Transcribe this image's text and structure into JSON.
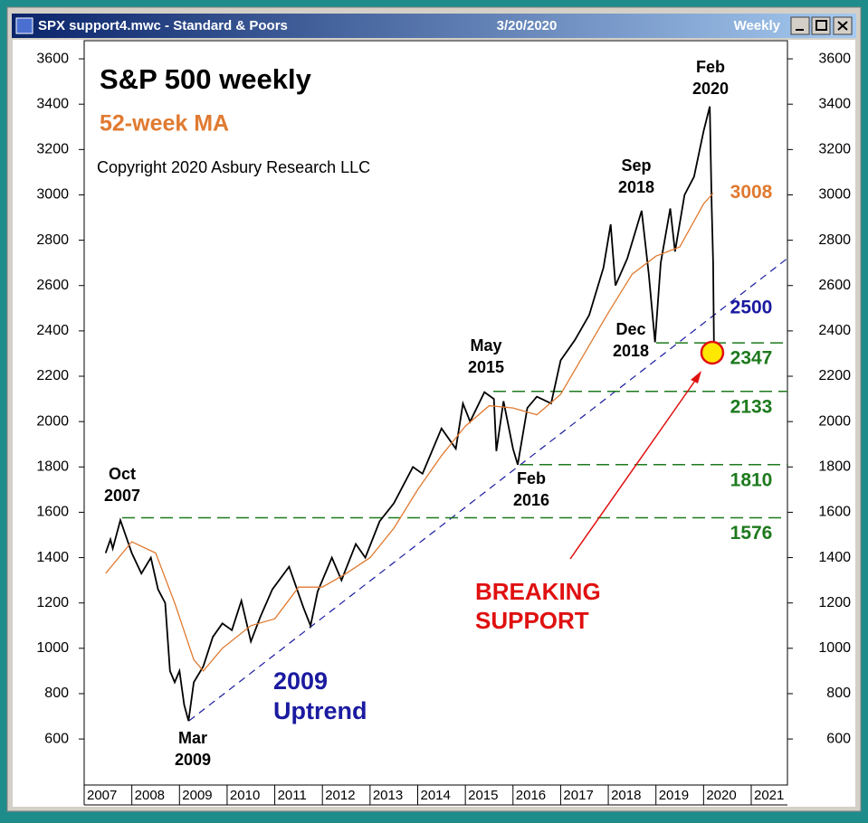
{
  "window": {
    "title": "SPX support4.mwc - Standard & Poors",
    "date": "3/20/2020",
    "period": "Weekly"
  },
  "chart_data": {
    "type": "line",
    "title": "S&P 500 weekly",
    "copyright": "Copyright 2020 Asbury Research LLC",
    "xlim": [
      2007,
      2021.76
    ],
    "xticks": [
      2007,
      2008,
      2009,
      2010,
      2011,
      2012,
      2013,
      2014,
      2015,
      2016,
      2017,
      2018,
      2019,
      2020,
      2021
    ],
    "ylim": [
      397,
      3680
    ],
    "yticks": [
      600,
      800,
      1000,
      1200,
      1400,
      1600,
      1800,
      2000,
      2200,
      2400,
      2600,
      2800,
      3000,
      3200,
      3400,
      3600
    ],
    "series": [
      {
        "color": "#000000",
        "x": [
          2007.45,
          2007.55,
          2007.6,
          2007.76,
          2007.9,
          2008.0,
          2008.2,
          2008.4,
          2008.55,
          2008.7,
          2008.8,
          2008.9,
          2009.0,
          2009.1,
          2009.19,
          2009.3,
          2009.5,
          2009.7,
          2009.9,
          2010.1,
          2010.3,
          2010.5,
          2010.7,
          2010.95,
          2011.3,
          2011.6,
          2011.75,
          2011.9,
          2012.2,
          2012.4,
          2012.7,
          2012.9,
          2013.2,
          2013.5,
          2013.9,
          2014.1,
          2014.5,
          2014.8,
          2014.95,
          2015.1,
          2015.4,
          2015.6,
          2015.65,
          2015.8,
          2016.0,
          2016.1,
          2016.3,
          2016.5,
          2016.8,
          2017.0,
          2017.3,
          2017.6,
          2017.9,
          2018.05,
          2018.15,
          2018.4,
          2018.7,
          2018.85,
          2018.98,
          2019.1,
          2019.3,
          2019.4,
          2019.6,
          2019.8,
          2020.0,
          2020.13,
          2020.17,
          2020.2,
          2020.22
        ],
        "values": [
          1420,
          1480,
          1440,
          1565,
          1480,
          1420,
          1330,
          1400,
          1260,
          1200,
          900,
          850,
          900,
          750,
          680,
          850,
          920,
          1050,
          1110,
          1080,
          1210,
          1030,
          1140,
          1260,
          1360,
          1180,
          1100,
          1250,
          1400,
          1300,
          1460,
          1400,
          1560,
          1640,
          1800,
          1770,
          1970,
          1880,
          2080,
          2000,
          2130,
          2100,
          1870,
          2090,
          1880,
          1810,
          2060,
          2110,
          2080,
          2270,
          2360,
          2470,
          2680,
          2870,
          2600,
          2720,
          2930,
          2650,
          2350,
          2700,
          2940,
          2750,
          3000,
          3080,
          3280,
          3390,
          2950,
          2700,
          2304
        ]
      },
      {
        "name": "52-week MA",
        "color": "#e07a30",
        "x": [
          2007.45,
          2008.0,
          2008.5,
          2008.9,
          2009.3,
          2009.5,
          2009.9,
          2010.5,
          2011.0,
          2011.5,
          2012.0,
          2012.5,
          2013.0,
          2013.5,
          2014.0,
          2014.5,
          2015.0,
          2015.5,
          2016.0,
          2016.5,
          2017.0,
          2017.5,
          2018.0,
          2018.5,
          2019.0,
          2019.5,
          2020.0,
          2020.2
        ],
        "values": [
          1330,
          1470,
          1420,
          1200,
          950,
          900,
          1000,
          1100,
          1130,
          1270,
          1270,
          1330,
          1400,
          1530,
          1700,
          1850,
          1980,
          2070,
          2060,
          2030,
          2120,
          2300,
          2480,
          2650,
          2730,
          2770,
          2960,
          3008
        ]
      }
    ],
    "support_levels": [
      2347,
      2133,
      1810,
      1576
    ],
    "support_color": "#1e7a1e",
    "level_labels": [
      {
        "value": 3008,
        "color": "#e07a30"
      },
      {
        "value": 2500,
        "color": "#1a1aa0"
      }
    ],
    "annotations": [
      {
        "lines": [
          "Feb",
          "2020"
        ],
        "color": "#000000"
      },
      {
        "lines": [
          "Sep",
          "2018"
        ],
        "color": "#000000"
      },
      {
        "lines": [
          "Dec",
          "2018"
        ],
        "color": "#000000"
      },
      {
        "lines": [
          "May",
          "2015"
        ],
        "color": "#000000"
      },
      {
        "lines": [
          "Feb",
          "2016"
        ],
        "color": "#000000"
      },
      {
        "lines": [
          "Oct",
          "2007"
        ],
        "color": "#000000"
      },
      {
        "lines": [
          "Mar",
          "2009"
        ],
        "color": "#000000"
      },
      {
        "lines": [
          "2009",
          "Uptrend"
        ],
        "color": "#1a1aa0"
      },
      {
        "lines": [
          "BREAKING",
          "SUPPORT"
        ],
        "color": "#e01010"
      }
    ]
  }
}
